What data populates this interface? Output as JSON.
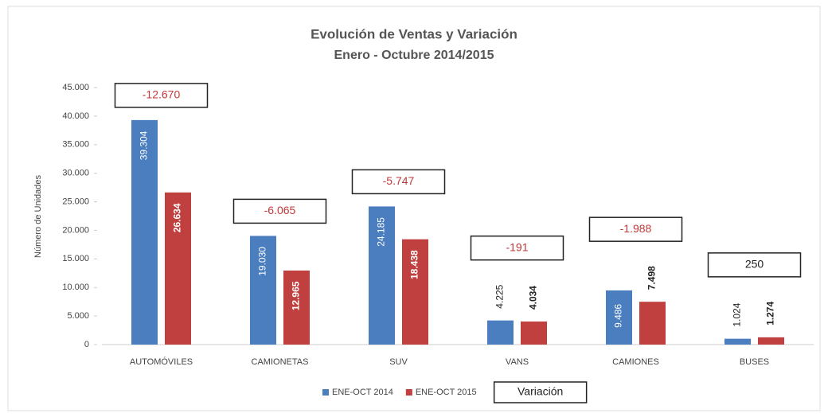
{
  "chart_data": {
    "type": "bar",
    "title": "Evolución de Ventas y Variación",
    "subtitle": "Enero - Octubre 2014/2015",
    "y_label": "Número de Unidades",
    "categories": [
      "AUTOMÓVILES",
      "CAMIONETAS",
      "SUV",
      "VANS",
      "CAMIONES",
      "BUSES"
    ],
    "series": [
      {
        "name": "ENE-OCT 2014",
        "color": "#4a7ebf",
        "values": [
          39304,
          19030,
          24185,
          4225,
          9486,
          1024
        ],
        "value_labels": [
          "39.304",
          "19.030",
          "24.185",
          "4.225",
          "9.486",
          "1.024"
        ]
      },
      {
        "name": "ENE-OCT 2015",
        "color": "#c0403f",
        "values": [
          26634,
          12965,
          18438,
          4034,
          7498,
          1274
        ],
        "value_labels": [
          "26.634",
          "12.965",
          "18.438",
          "4.034",
          "7.498",
          "1.274"
        ]
      }
    ],
    "variation": {
      "name": "Variación",
      "values": [
        -12670,
        -6065,
        -5747,
        -191,
        -1988,
        250
      ],
      "value_labels": [
        "-12.670",
        "-6.065",
        "-5.747",
        "-191",
        "-1.988",
        "250"
      ]
    },
    "ylim": [
      0,
      45000
    ],
    "yticks": [
      0,
      {
        "value": 5000,
        "label": "5.000"
      },
      {
        "value": 10000,
        "label": "10.000"
      },
      {
        "value": 15000,
        "label": "15.000"
      },
      {
        "value": 20000,
        "label": "20.000"
      },
      {
        "value": 25000,
        "label": "25.000"
      },
      {
        "value": 30000,
        "label": "30.000"
      },
      {
        "value": 35000,
        "label": "35.000"
      },
      {
        "value": 40000,
        "label": "40.000"
      },
      {
        "value": 45000,
        "label": "45.000"
      }
    ],
    "grid": false,
    "legend": "bottom"
  }
}
